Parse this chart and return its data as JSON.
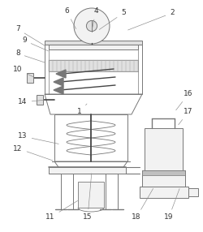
{
  "bg_color": "#ffffff",
  "line_color": "#777777",
  "dark_line": "#444444",
  "label_color": "#333333",
  "label_fontsize": 6.5,
  "mesh_color": "#aaaaaa",
  "fill_light": "#f2f2f2",
  "fill_mid": "#e0e0e0"
}
